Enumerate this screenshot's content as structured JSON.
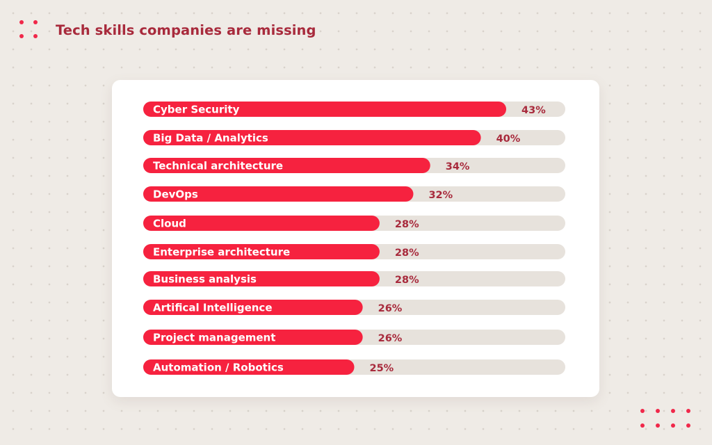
{
  "header": {
    "title": "Tech skills companies are missing"
  },
  "colors": {
    "background": "#efebe6",
    "accent": "#f0284a",
    "bar_fill": "#f6223f",
    "track": "#e7e2dc",
    "value_text": "#a82a3c"
  },
  "chart_data": {
    "type": "bar",
    "orientation": "horizontal",
    "title": "Tech skills companies are missing",
    "categories": [
      "Cyber Security",
      "Big Data / Analytics",
      "Technical architecture",
      "DevOps",
      "Cloud",
      "Enterprise architecture",
      "Business analysis",
      "Artifical Intelligence",
      "Project management",
      "Automation / Robotics"
    ],
    "values": [
      43,
      40,
      34,
      32,
      28,
      28,
      28,
      26,
      26,
      25
    ],
    "value_labels": [
      "43%",
      "40%",
      "34%",
      "32%",
      "28%",
      "28%",
      "28%",
      "26%",
      "26%",
      "25%"
    ],
    "xlim": [
      0,
      50
    ],
    "legend": "none",
    "grid": false
  }
}
